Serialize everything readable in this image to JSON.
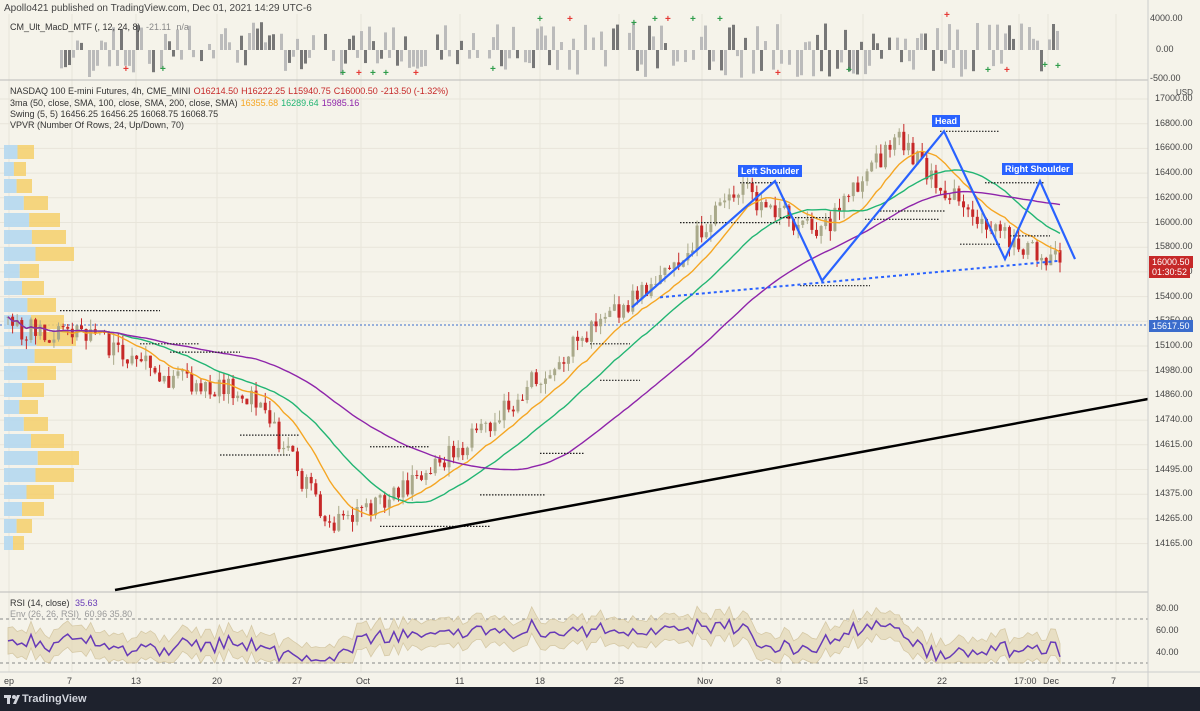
{
  "header": {
    "title": "Apollo421 published on TradingView.com, Dec 01, 2021 14:29 UTC-6"
  },
  "macd_panel": {
    "label": "CM_Ult_MacD_MTF (, 12, 24, 8)",
    "value": "-21.11",
    "value2": "n/a",
    "ticks": [
      "4000.00",
      "0.00",
      "-500.00"
    ]
  },
  "main_panel": {
    "instrument_line": [
      {
        "text": "NASDAQ 100 E-mini Futures, 4h, CME_MINI",
        "color": "#333333"
      },
      {
        "text": "O16214.50",
        "color": "#c62828"
      },
      {
        "text": "H16222.25",
        "color": "#c62828"
      },
      {
        "text": "L15940.75",
        "color": "#c62828"
      },
      {
        "text": "C16000.50",
        "color": "#c62828"
      },
      {
        "text": "-213.50 (-1.32%)",
        "color": "#c62828"
      }
    ],
    "ma_line": [
      {
        "text": "3ma (50, close, SMA, 100, close, SMA, 200, close, SMA)",
        "color": "#333333"
      },
      {
        "text": "16355.68",
        "color": "#f5a623"
      },
      {
        "text": "16289.64",
        "color": "#22b573"
      },
      {
        "text": "15985.16",
        "color": "#8e24aa"
      }
    ],
    "swing_line": "Swing (5, 5)  16456.25  16456.25  16068.75  16068.75",
    "vpvr_line": "VPVR (Number Of Rows, 24, Up/Down, 70)",
    "currency": "USD",
    "price_ticks": [
      "17000.00",
      "16800.00",
      "16600.00",
      "16400.00",
      "16200.00",
      "16000.00",
      "15800.00",
      "15600.00",
      "15400.00",
      "15250.00",
      "15100.00",
      "14980.00",
      "14860.00",
      "14740.00",
      "14615.00",
      "14495.00",
      "14375.00",
      "14265.00",
      "14165.00"
    ],
    "last_price": "16000.50",
    "countdown": "01:30:52",
    "hline_price": "15617.50",
    "annotations": {
      "left_shoulder": "Left Shoulder",
      "head": "Head",
      "right_shoulder": "Right Shoulder"
    }
  },
  "rsi_panel": {
    "label": "RSI (14, close)",
    "value": "35.63",
    "env_label": "Env (26, 26, RSI)",
    "env_values": "60.96  35.80",
    "ticks": [
      "80.00",
      "60.00",
      "40.00"
    ]
  },
  "x_axis": [
    "ep",
    "7",
    "13",
    "20",
    "27",
    "Oct",
    "11",
    "18",
    "25",
    "Nov",
    "8",
    "15",
    "22",
    "17:00",
    "Dec",
    "7"
  ],
  "footer": {
    "brand": "TradingView"
  },
  "colors": {
    "ma50": "#f5a623",
    "ma100": "#22b573",
    "ma200": "#8e24aa",
    "pattern": "#2962ff",
    "trendline": "#000000",
    "up": "#a9a98a",
    "down": "#c62828",
    "rsi": "#673ab7"
  },
  "chart_data": {
    "type": "candlestick",
    "title": "NASDAQ 100 E-mini Futures, 4h",
    "ylabel": "USD",
    "ylim": [
      14165,
      17100
    ],
    "x": [
      "Sep 07",
      "Sep 13",
      "Sep 20",
      "Sep 27",
      "Oct 04",
      "Oct 11",
      "Oct 18",
      "Oct 25",
      "Nov 01",
      "Nov 08",
      "Nov 15",
      "Nov 22",
      "Nov 29",
      "Dec 01"
    ],
    "series": [
      {
        "name": "Close (approx.)",
        "values": [
          15600,
          15550,
          15300,
          15200,
          14400,
          14650,
          15050,
          15500,
          15850,
          16450,
          16150,
          16750,
          16200,
          16000
        ]
      }
    ],
    "moving_averages": {
      "ma50": 16355.68,
      "ma100": 16289.64,
      "ma200": 15985.16
    },
    "swing": [
      16456.25,
      16456.25,
      16068.75,
      16068.75
    ],
    "ohlc_last": {
      "open": 16214.5,
      "high": 16222.25,
      "low": 15940.75,
      "close": 16000.5,
      "change": -213.5,
      "change_pct": -1.32
    },
    "horizontal_line": 15617.5,
    "pattern": "Head and Shoulders",
    "rsi": {
      "value": 35.63,
      "ylim": [
        30,
        90
      ],
      "env": [
        60.96,
        35.8
      ]
    }
  }
}
